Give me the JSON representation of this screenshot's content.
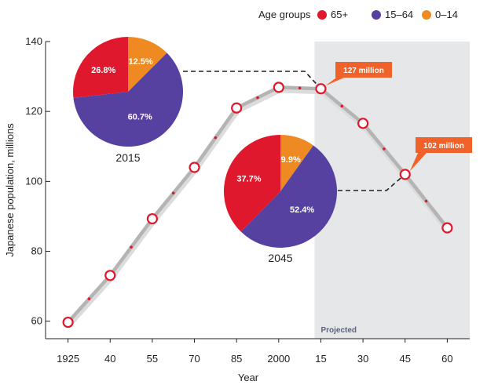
{
  "chart_data": {
    "type": "line",
    "ylabel": "Japanese population, millions",
    "xlabel": "Year",
    "ylim": [
      55,
      140
    ],
    "yticks": [
      60,
      80,
      100,
      120,
      140
    ],
    "x_labels": [
      "1925",
      "40",
      "55",
      "70",
      "85",
      "2000",
      "15",
      "30",
      "45",
      "60"
    ],
    "years": [
      1925,
      1940,
      1955,
      1970,
      1985,
      2000,
      2015,
      2030,
      2045,
      2060
    ],
    "values": [
      59.7,
      73.1,
      89.3,
      104.0,
      121.0,
      126.9,
      126.5,
      116.6,
      102.0,
      86.7
    ],
    "grid": false,
    "projected": {
      "label": "Projected",
      "from_year": 2015,
      "to_year": 2064
    },
    "legend": {
      "title": "Age groups",
      "position": "top-right",
      "items": [
        {
          "label": "65+",
          "color": "#e0182d"
        },
        {
          "label": "15–64",
          "color": "#5640a0"
        },
        {
          "label": "0–14",
          "color": "#ef8a22"
        }
      ]
    },
    "callouts": [
      {
        "label": "127 million",
        "year": 2015,
        "value": 126.5
      },
      {
        "label": "102 million",
        "year": 2045,
        "value": 102.0
      }
    ],
    "pies": [
      {
        "year_label": "2015",
        "linked_year": 2015,
        "slices": [
          {
            "group": "65+",
            "value": 26.8,
            "label": "26.8%"
          },
          {
            "group": "15–64",
            "value": 60.7,
            "label": "60.7%"
          },
          {
            "group": "0–14",
            "value": 12.5,
            "label": "12.5%"
          }
        ]
      },
      {
        "year_label": "2045",
        "linked_year": 2045,
        "slices": [
          {
            "group": "65+",
            "value": 37.7,
            "label": "37.7%"
          },
          {
            "group": "15–64",
            "value": 52.4,
            "label": "52.4%"
          },
          {
            "group": "0–14",
            "value": 9.9,
            "label": "9.9%"
          }
        ]
      }
    ],
    "colors": {
      "line": "#b4b4b4",
      "marker": "#e0182d",
      "callout": "#f0622a",
      "projected_bg": "#e6e7e9"
    }
  }
}
